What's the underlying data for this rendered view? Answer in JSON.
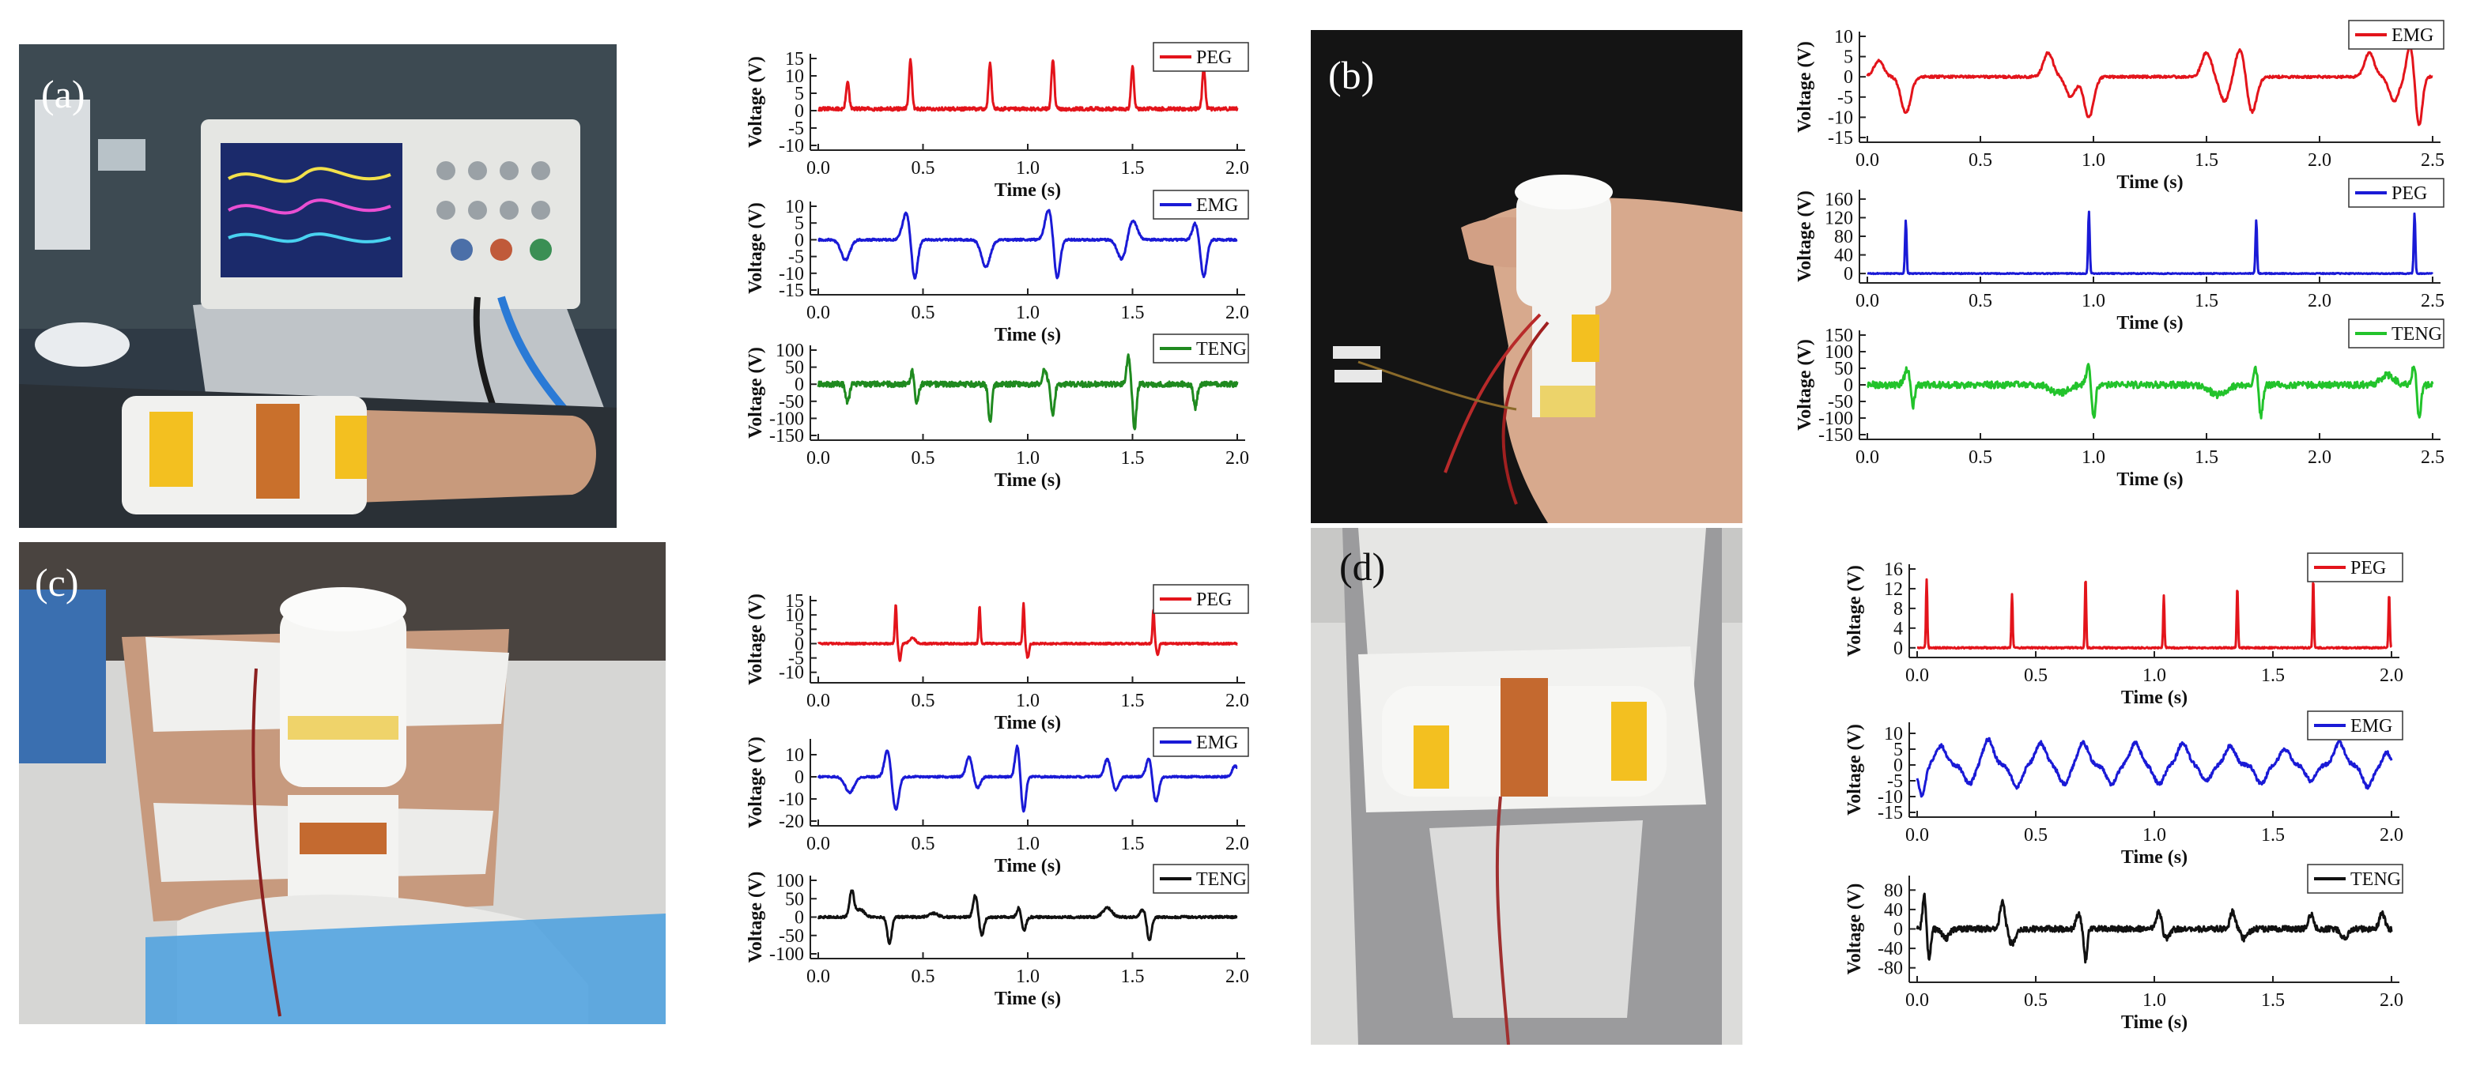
{
  "figure": {
    "panels": [
      {
        "id": "a",
        "label": "(a)",
        "subject": "wrist"
      },
      {
        "id": "b",
        "label": "(b)",
        "subject": "hand"
      },
      {
        "id": "c",
        "label": "(c)",
        "subject": "ankle"
      },
      {
        "id": "d",
        "label": "(d)",
        "subject": "knee"
      }
    ]
  },
  "chart_data": [
    {
      "id": "a1",
      "panel": "a",
      "type": "line",
      "series_name": "PEG",
      "color": "#e3141b",
      "xlabel": "Time (s)",
      "ylabel": "Voltage (V)",
      "xlim": [
        0,
        2.0
      ],
      "ylim": [
        -10,
        15
      ],
      "xticks": [
        "0.0",
        "0.5",
        "1.0",
        "1.5",
        "2.0"
      ],
      "yticks": [
        "15",
        "10",
        "5",
        "0",
        "-5",
        "-10"
      ],
      "baseline": 0.5,
      "noise": 0.5,
      "events": [
        {
          "t": 0.14,
          "a": 8,
          "w": 0.01
        },
        {
          "t": 0.44,
          "a": 14,
          "w": 0.01
        },
        {
          "t": 0.82,
          "a": 13,
          "w": 0.01
        },
        {
          "t": 1.12,
          "a": 14,
          "w": 0.01
        },
        {
          "t": 1.5,
          "a": 12,
          "w": 0.01
        },
        {
          "t": 1.84,
          "a": 12,
          "w": 0.01
        }
      ]
    },
    {
      "id": "a2",
      "panel": "a",
      "type": "line",
      "series_name": "EMG",
      "color": "#1a1ad6",
      "xlabel": "Time (s)",
      "ylabel": "Voltage (V)",
      "xlim": [
        0,
        2.0
      ],
      "ylim": [
        -15,
        10
      ],
      "xticks": [
        "0.0",
        "0.5",
        "1.0",
        "1.5",
        "2.0"
      ],
      "yticks": [
        "10",
        "5",
        "0",
        "-5",
        "-10",
        "-15"
      ],
      "baseline": 0,
      "noise": 0.3,
      "events": [
        {
          "t": 0.13,
          "a": -6,
          "w": 0.03
        },
        {
          "t": 0.42,
          "a": 8,
          "w": 0.025
        },
        {
          "t": 0.46,
          "a": -12,
          "w": 0.02
        },
        {
          "t": 0.8,
          "a": -8,
          "w": 0.03
        },
        {
          "t": 1.1,
          "a": 9,
          "w": 0.025
        },
        {
          "t": 1.14,
          "a": -12,
          "w": 0.02
        },
        {
          "t": 1.45,
          "a": -6,
          "w": 0.03
        },
        {
          "t": 1.5,
          "a": 6,
          "w": 0.03
        },
        {
          "t": 1.8,
          "a": 5,
          "w": 0.02
        },
        {
          "t": 1.84,
          "a": -11,
          "w": 0.02
        }
      ]
    },
    {
      "id": "a3",
      "panel": "a",
      "type": "line",
      "series_name": "TENG",
      "color": "#1f8a1f",
      "xlabel": "Time (s)",
      "ylabel": "Voltage (V)",
      "xlim": [
        0,
        2.0
      ],
      "ylim": [
        -150,
        100
      ],
      "xticks": [
        "0.0",
        "0.5",
        "1.0",
        "1.5",
        "2.0"
      ],
      "yticks": [
        "100",
        "50",
        "0",
        "-50",
        "-100",
        "-150"
      ],
      "baseline": 0,
      "noise": 8,
      "events": [
        {
          "t": 0.14,
          "a": -55,
          "w": 0.012
        },
        {
          "t": 0.45,
          "a": 40,
          "w": 0.012
        },
        {
          "t": 0.47,
          "a": -60,
          "w": 0.012
        },
        {
          "t": 0.82,
          "a": -110,
          "w": 0.012
        },
        {
          "t": 1.08,
          "a": 40,
          "w": 0.015
        },
        {
          "t": 1.12,
          "a": -90,
          "w": 0.012
        },
        {
          "t": 1.48,
          "a": 80,
          "w": 0.012
        },
        {
          "t": 1.51,
          "a": -130,
          "w": 0.012
        },
        {
          "t": 1.8,
          "a": -70,
          "w": 0.012
        }
      ]
    },
    {
      "id": "b1",
      "panel": "b",
      "type": "line",
      "series_name": "EMG",
      "color": "#e3141b",
      "xlabel": "Time (s)",
      "ylabel": "Voltage (V)",
      "xlim": [
        0,
        2.5
      ],
      "ylim": [
        -15,
        10
      ],
      "xticks": [
        "0.0",
        "0.5",
        "1.0",
        "1.5",
        "2.0",
        "2.5"
      ],
      "yticks": [
        "10",
        "5",
        "0",
        "-5",
        "-10",
        "-15"
      ],
      "baseline": 0,
      "noise": 0.3,
      "events": [
        {
          "t": 0.05,
          "a": 4,
          "w": 0.03
        },
        {
          "t": 0.17,
          "a": -9,
          "w": 0.03
        },
        {
          "t": 0.8,
          "a": 6,
          "w": 0.03
        },
        {
          "t": 0.9,
          "a": -5,
          "w": 0.03
        },
        {
          "t": 0.98,
          "a": -10,
          "w": 0.03
        },
        {
          "t": 1.5,
          "a": 6,
          "w": 0.03
        },
        {
          "t": 1.58,
          "a": -6,
          "w": 0.03
        },
        {
          "t": 1.65,
          "a": 7,
          "w": 0.03
        },
        {
          "t": 1.7,
          "a": -9,
          "w": 0.03
        },
        {
          "t": 2.22,
          "a": 6,
          "w": 0.03
        },
        {
          "t": 2.33,
          "a": -6,
          "w": 0.03
        },
        {
          "t": 2.4,
          "a": 8,
          "w": 0.02
        },
        {
          "t": 2.44,
          "a": -12,
          "w": 0.02
        }
      ]
    },
    {
      "id": "b2",
      "panel": "b",
      "type": "line",
      "series_name": "PEG",
      "color": "#1a1ad6",
      "xlabel": "Time (s)",
      "ylabel": "Voltage (V)",
      "xlim": [
        0,
        2.5
      ],
      "ylim": [
        -10,
        170
      ],
      "xticks": [
        "0.0",
        "0.5",
        "1.0",
        "1.5",
        "2.0",
        "2.5"
      ],
      "yticks": [
        "160",
        "120",
        "80",
        "40",
        "0"
      ],
      "baseline": 0,
      "noise": 1,
      "events": [
        {
          "t": 0.17,
          "a": 115,
          "w": 0.005
        },
        {
          "t": 0.98,
          "a": 135,
          "w": 0.005
        },
        {
          "t": 1.72,
          "a": 115,
          "w": 0.005
        },
        {
          "t": 2.42,
          "a": 130,
          "w": 0.005
        }
      ]
    },
    {
      "id": "b3",
      "panel": "b",
      "type": "line",
      "series_name": "TENG",
      "color": "#22c32b",
      "xlabel": "Time (s)",
      "ylabel": "Voltage (V)",
      "xlim": [
        0,
        2.5
      ],
      "ylim": [
        -150,
        150
      ],
      "xticks": [
        "0.0",
        "0.5",
        "1.0",
        "1.5",
        "2.0",
        "2.5"
      ],
      "yticks": [
        "150",
        "100",
        "50",
        "0",
        "-50",
        "-100",
        "-150"
      ],
      "baseline": 0,
      "noise": 10,
      "events": [
        {
          "t": 0.18,
          "a": 50,
          "w": 0.02
        },
        {
          "t": 0.2,
          "a": -80,
          "w": 0.012
        },
        {
          "t": 0.85,
          "a": -25,
          "w": 0.05
        },
        {
          "t": 0.98,
          "a": 60,
          "w": 0.015
        },
        {
          "t": 1.0,
          "a": -110,
          "w": 0.012
        },
        {
          "t": 1.55,
          "a": -30,
          "w": 0.05
        },
        {
          "t": 1.72,
          "a": 50,
          "w": 0.015
        },
        {
          "t": 1.74,
          "a": -100,
          "w": 0.012
        },
        {
          "t": 2.3,
          "a": 30,
          "w": 0.04
        },
        {
          "t": 2.42,
          "a": 60,
          "w": 0.015
        },
        {
          "t": 2.44,
          "a": -110,
          "w": 0.012
        }
      ]
    },
    {
      "id": "c1",
      "panel": "c",
      "type": "line",
      "series_name": "PEG",
      "color": "#e3141b",
      "xlabel": "Time (s)",
      "ylabel": "Voltage (V)",
      "xlim": [
        0,
        2.0
      ],
      "ylim": [
        -12,
        15
      ],
      "xticks": [
        "0.0",
        "0.5",
        "1.0",
        "1.5",
        "2.0"
      ],
      "yticks": [
        "15",
        "10",
        "5",
        "0",
        "-5",
        "-10"
      ],
      "baseline": 0,
      "noise": 0.3,
      "events": [
        {
          "t": 0.37,
          "a": 14,
          "w": 0.006
        },
        {
          "t": 0.39,
          "a": -6,
          "w": 0.008
        },
        {
          "t": 0.45,
          "a": 2,
          "w": 0.02
        },
        {
          "t": 0.77,
          "a": 13,
          "w": 0.006
        },
        {
          "t": 0.98,
          "a": 14,
          "w": 0.006
        },
        {
          "t": 1.0,
          "a": -5,
          "w": 0.008
        },
        {
          "t": 1.6,
          "a": 12,
          "w": 0.006
        },
        {
          "t": 1.62,
          "a": -4,
          "w": 0.008
        }
      ]
    },
    {
      "id": "c2",
      "panel": "c",
      "type": "line",
      "series_name": "EMG",
      "color": "#1a1ad6",
      "xlabel": "Time (s)",
      "ylabel": "Voltage (V)",
      "xlim": [
        0,
        2.0
      ],
      "ylim": [
        -20,
        15
      ],
      "xticks": [
        "0.0",
        "0.5",
        "1.0",
        "1.5",
        "2.0"
      ],
      "yticks": [
        "10",
        "0",
        "-10",
        "-20"
      ],
      "baseline": 0,
      "noise": 0.4,
      "events": [
        {
          "t": 0.15,
          "a": -7,
          "w": 0.03
        },
        {
          "t": 0.33,
          "a": 12,
          "w": 0.02
        },
        {
          "t": 0.37,
          "a": -15,
          "w": 0.02
        },
        {
          "t": 0.72,
          "a": 9,
          "w": 0.02
        },
        {
          "t": 0.76,
          "a": -5,
          "w": 0.02
        },
        {
          "t": 0.95,
          "a": 14,
          "w": 0.015
        },
        {
          "t": 0.98,
          "a": -16,
          "w": 0.015
        },
        {
          "t": 1.38,
          "a": 8,
          "w": 0.02
        },
        {
          "t": 1.42,
          "a": -6,
          "w": 0.02
        },
        {
          "t": 1.58,
          "a": 9,
          "w": 0.02
        },
        {
          "t": 1.61,
          "a": -12,
          "w": 0.02
        },
        {
          "t": 1.99,
          "a": 5,
          "w": 0.02
        }
      ]
    },
    {
      "id": "c3",
      "panel": "c",
      "type": "line",
      "series_name": "TENG",
      "color": "#111111",
      "xlabel": "Time (s)",
      "ylabel": "Voltage (V)",
      "xlim": [
        0,
        2.0
      ],
      "ylim": [
        -100,
        100
      ],
      "xticks": [
        "0.0",
        "0.5",
        "1.0",
        "1.5",
        "2.0"
      ],
      "yticks": [
        "100",
        "50",
        "0",
        "-50",
        "-100"
      ],
      "baseline": 0,
      "noise": 3,
      "events": [
        {
          "t": 0.16,
          "a": 70,
          "w": 0.015
        },
        {
          "t": 0.2,
          "a": 20,
          "w": 0.03
        },
        {
          "t": 0.34,
          "a": -70,
          "w": 0.015
        },
        {
          "t": 0.55,
          "a": 10,
          "w": 0.03
        },
        {
          "t": 0.75,
          "a": 60,
          "w": 0.015
        },
        {
          "t": 0.78,
          "a": -50,
          "w": 0.015
        },
        {
          "t": 0.96,
          "a": 30,
          "w": 0.015
        },
        {
          "t": 0.98,
          "a": -40,
          "w": 0.015
        },
        {
          "t": 1.38,
          "a": 25,
          "w": 0.03
        },
        {
          "t": 1.55,
          "a": 20,
          "w": 0.02
        },
        {
          "t": 1.58,
          "a": -65,
          "w": 0.015
        }
      ]
    },
    {
      "id": "d1",
      "panel": "d",
      "type": "line",
      "series_name": "PEG",
      "color": "#e3141b",
      "xlabel": "Time (s)",
      "ylabel": "Voltage (V)",
      "xlim": [
        0,
        2.0
      ],
      "ylim": [
        -1,
        16
      ],
      "xticks": [
        "0.0",
        "0.5",
        "1.0",
        "1.5",
        "2.0"
      ],
      "yticks": [
        "16",
        "12",
        "8",
        "4",
        "0"
      ],
      "baseline": 0,
      "noise": 0.15,
      "events": [
        {
          "t": 0.04,
          "a": 14,
          "w": 0.004
        },
        {
          "t": 0.4,
          "a": 11,
          "w": 0.004
        },
        {
          "t": 0.71,
          "a": 14.5,
          "w": 0.004
        },
        {
          "t": 1.04,
          "a": 10.5,
          "w": 0.004
        },
        {
          "t": 1.35,
          "a": 12.5,
          "w": 0.004
        },
        {
          "t": 1.67,
          "a": 14,
          "w": 0.004
        },
        {
          "t": 1.99,
          "a": 11,
          "w": 0.004
        }
      ]
    },
    {
      "id": "d2",
      "panel": "d",
      "type": "line",
      "series_name": "EMG",
      "color": "#1a1ad6",
      "xlabel": "Time (s)",
      "ylabel": "Voltage (V)",
      "xlim": [
        0,
        2.0
      ],
      "ylim": [
        -15,
        12
      ],
      "xticks": [
        "0.0",
        "0.5",
        "1.0",
        "1.5",
        "2.0"
      ],
      "yticks": [
        "10",
        "5",
        "0",
        "-5",
        "-10",
        "-15"
      ],
      "baseline": 0,
      "noise": 0.6,
      "events": [
        {
          "t": 0.02,
          "a": -10,
          "w": 0.02
        },
        {
          "t": 0.1,
          "a": 6,
          "w": 0.03
        },
        {
          "t": 0.22,
          "a": -6,
          "w": 0.03
        },
        {
          "t": 0.3,
          "a": 8,
          "w": 0.03
        },
        {
          "t": 0.42,
          "a": -7,
          "w": 0.03
        },
        {
          "t": 0.52,
          "a": 7,
          "w": 0.03
        },
        {
          "t": 0.62,
          "a": -6,
          "w": 0.03
        },
        {
          "t": 0.7,
          "a": 7,
          "w": 0.03
        },
        {
          "t": 0.82,
          "a": -6,
          "w": 0.03
        },
        {
          "t": 0.92,
          "a": 7,
          "w": 0.03
        },
        {
          "t": 1.02,
          "a": -6,
          "w": 0.03
        },
        {
          "t": 1.12,
          "a": 7,
          "w": 0.03
        },
        {
          "t": 1.22,
          "a": -5,
          "w": 0.03
        },
        {
          "t": 1.32,
          "a": 6,
          "w": 0.03
        },
        {
          "t": 1.45,
          "a": -6,
          "w": 0.03
        },
        {
          "t": 1.55,
          "a": 5,
          "w": 0.03
        },
        {
          "t": 1.66,
          "a": -5,
          "w": 0.03
        },
        {
          "t": 1.78,
          "a": 7,
          "w": 0.03
        },
        {
          "t": 1.9,
          "a": -7,
          "w": 0.03
        },
        {
          "t": 1.98,
          "a": 4,
          "w": 0.02
        }
      ]
    },
    {
      "id": "d3",
      "panel": "d",
      "type": "line",
      "series_name": "TENG",
      "color": "#111111",
      "xlabel": "Time (s)",
      "ylabel": "Voltage (V)",
      "xlim": [
        0,
        2.0
      ],
      "ylim": [
        -100,
        100
      ],
      "xticks": [
        "0.0",
        "0.5",
        "1.0",
        "1.5",
        "2.0"
      ],
      "yticks": [
        "80",
        "40",
        "0",
        "-40",
        "-80"
      ],
      "baseline": 0,
      "noise": 6,
      "events": [
        {
          "t": 0.03,
          "a": 70,
          "w": 0.01
        },
        {
          "t": 0.05,
          "a": -60,
          "w": 0.01
        },
        {
          "t": 0.12,
          "a": -20,
          "w": 0.02
        },
        {
          "t": 0.36,
          "a": 55,
          "w": 0.015
        },
        {
          "t": 0.4,
          "a": -30,
          "w": 0.02
        },
        {
          "t": 0.68,
          "a": 30,
          "w": 0.015
        },
        {
          "t": 0.71,
          "a": -65,
          "w": 0.01
        },
        {
          "t": 1.02,
          "a": 40,
          "w": 0.015
        },
        {
          "t": 1.05,
          "a": -20,
          "w": 0.02
        },
        {
          "t": 1.33,
          "a": 35,
          "w": 0.015
        },
        {
          "t": 1.38,
          "a": -20,
          "w": 0.02
        },
        {
          "t": 1.66,
          "a": 30,
          "w": 0.015
        },
        {
          "t": 1.8,
          "a": -20,
          "w": 0.02
        },
        {
          "t": 1.96,
          "a": 35,
          "w": 0.015
        }
      ]
    }
  ]
}
